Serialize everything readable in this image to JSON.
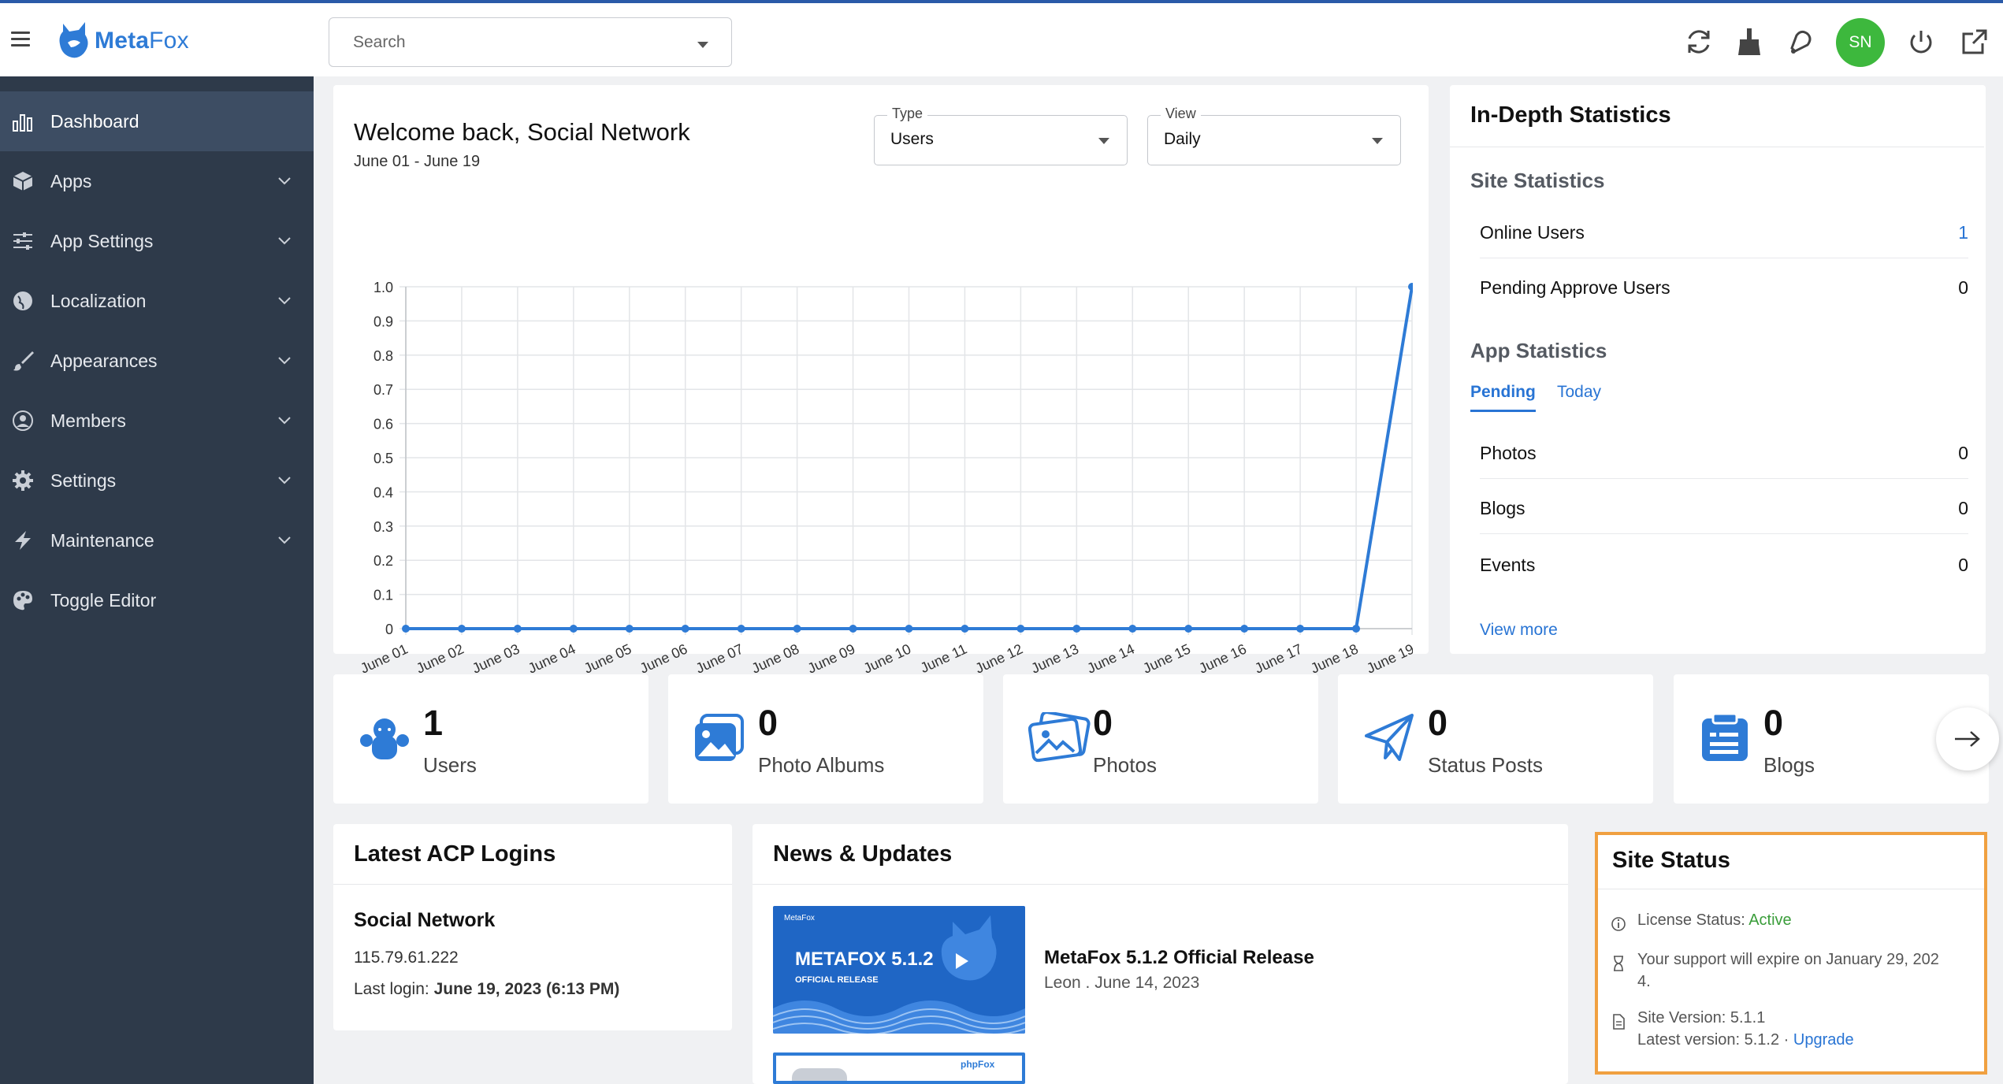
{
  "header": {
    "brand_bold": "Meta",
    "brand_light": "Fox",
    "search_placeholder": "Search",
    "avatar_initials": "SN",
    "icons": [
      "refresh-icon",
      "broom-icon",
      "bell-icon",
      "power-icon",
      "external-link-icon"
    ]
  },
  "sidebar": {
    "items": [
      {
        "label": "Dashboard",
        "icon": "bar-chart-icon",
        "active": true
      },
      {
        "label": "Apps",
        "icon": "cube-icon"
      },
      {
        "label": "App Settings",
        "icon": "sliders-icon"
      },
      {
        "label": "Localization",
        "icon": "globe-icon"
      },
      {
        "label": "Appearances",
        "icon": "brush-icon"
      },
      {
        "label": "Members",
        "icon": "user-circle-icon"
      },
      {
        "label": "Settings",
        "icon": "gear-icon"
      },
      {
        "label": "Maintenance",
        "icon": "bolt-icon"
      },
      {
        "label": "Toggle Editor",
        "icon": "palette-icon"
      }
    ]
  },
  "welcome": {
    "title": "Welcome back, Social Network",
    "range": "June 01 - June 19",
    "type_label": "Type",
    "type_value": "Users",
    "view_label": "View",
    "view_value": "Daily"
  },
  "chart_data": {
    "type": "line",
    "categories": [
      "June 01",
      "June 02",
      "June 03",
      "June 04",
      "June 05",
      "June 06",
      "June 07",
      "June 08",
      "June 09",
      "June 10",
      "June 11",
      "June 12",
      "June 13",
      "June 14",
      "June 15",
      "June 16",
      "June 17",
      "June 18",
      "June 19"
    ],
    "series": [
      {
        "values": [
          0,
          0,
          0,
          0,
          0,
          0,
          0,
          0,
          0,
          0,
          0,
          0,
          0,
          0,
          0,
          0,
          0,
          0,
          1
        ]
      }
    ],
    "y_ticks": [
      "0",
      "0.1",
      "0.2",
      "0.3",
      "0.4",
      "0.5",
      "0.6",
      "0.7",
      "0.8",
      "0.9",
      "1.0"
    ],
    "ylim": [
      0,
      1
    ],
    "grid": true,
    "color": "#2e7bd6"
  },
  "stats": {
    "title": "In-Depth Statistics",
    "site_heading": "Site Statistics",
    "site_rows": [
      {
        "label": "Online Users",
        "value": "1"
      },
      {
        "label": "Pending Approve Users",
        "value": "0"
      }
    ],
    "app_heading": "App Statistics",
    "tabs": [
      "Pending",
      "Today"
    ],
    "app_rows": [
      {
        "label": "Photos",
        "value": "0"
      },
      {
        "label": "Blogs",
        "value": "0"
      },
      {
        "label": "Events",
        "value": "0"
      }
    ],
    "view_more": "View more"
  },
  "metrics": [
    {
      "value": "1",
      "label": "Users",
      "icon": "users-icon"
    },
    {
      "value": "0",
      "label": "Photo Albums",
      "icon": "photo-album-icon"
    },
    {
      "value": "0",
      "label": "Photos",
      "icon": "photos-icon"
    },
    {
      "value": "0",
      "label": "Status Posts",
      "icon": "paper-plane-icon"
    },
    {
      "value": "0",
      "label": "Blogs",
      "icon": "blog-icon"
    }
  ],
  "logins": {
    "title": "Latest ACP Logins",
    "name": "Social Network",
    "ip": "115.79.61.222",
    "last_login_label": "Last login: ",
    "last_login_value": "June 19, 2023 (6:13 PM)"
  },
  "news": {
    "title": "News & Updates",
    "item_title": "MetaFox 5.1.2 Official Release",
    "item_meta": "Leon . June 14, 2023",
    "thumb_brand": "MetaFox",
    "thumb_heading": "METAFOX 5.1.2",
    "thumb_sub": "OFFICIAL RELEASE",
    "thumb2_brand": "phpFox"
  },
  "site_status": {
    "title": "Site Status",
    "license_label": "License Status: ",
    "license_value": "Active",
    "support_line1": "Your support will expire on January 29, 202",
    "support_line2": "4.",
    "version_line": "Site Version: 5.1.1",
    "latest_label": "Latest version: 5.1.2 · ",
    "upgrade": "Upgrade"
  },
  "colors": {
    "accent": "#2874d4",
    "sidebar": "#2e3a4a",
    "active_green": "#3a9d3a",
    "highlight": "#f0a040"
  }
}
